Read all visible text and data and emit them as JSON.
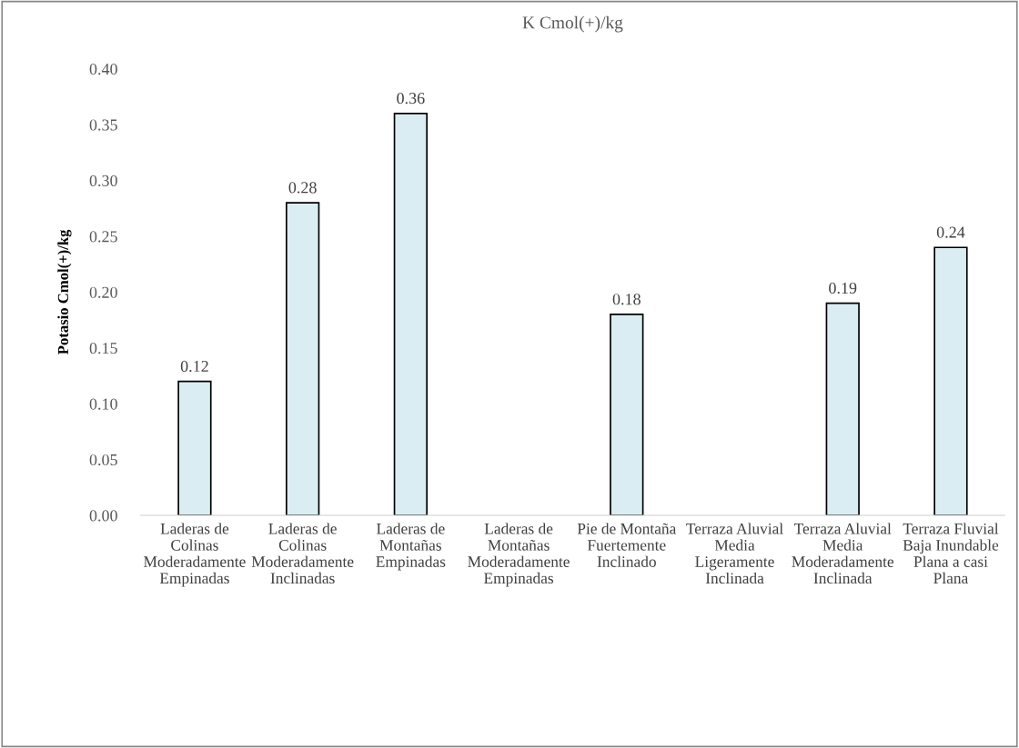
{
  "chart_data": {
    "type": "bar",
    "title": "K Cmol(+)/kg",
    "ylabel": "Potasio Cmol(+)/kg",
    "categories": [
      "Laderas de\nColinas\nModeradamente\nEmpinadas",
      "Laderas de\nColinas\nModeradamente\nInclinadas",
      "Laderas de\nMontañas\nEmpinadas",
      "Laderas de\nMontañas\nModeradamente\nEmpinadas",
      "Pie de Montaña\nFuertemente\nInclinado",
      "Terraza Aluvial\nMedia\nLigeramente\nInclinada",
      "Terraza Aluvial\nMedia\nModeradamente\nInclinada",
      "Terraza Fluvial\nBaja Inundable\nPlana a casi\nPlana"
    ],
    "values": [
      0.12,
      0.28,
      0.36,
      null,
      0.18,
      null,
      0.19,
      0.24
    ],
    "color": "#daedf3",
    "ylim": [
      0,
      0.4
    ],
    "yticks": [
      {
        "value": 0,
        "label": "0.00"
      },
      {
        "value": 0.05,
        "label": "0.05"
      },
      {
        "value": 0.1,
        "label": "0.10"
      },
      {
        "value": 0.15,
        "label": "0.15"
      },
      {
        "value": 0.2,
        "label": "0.20"
      },
      {
        "value": 0.25,
        "label": "0.25"
      },
      {
        "value": 0.3,
        "label": "0.30"
      },
      {
        "value": 0.35,
        "label": "0.35"
      },
      {
        "value": 0.4,
        "label": "0.40"
      }
    ],
    "data_labels": true,
    "grid": false
  }
}
